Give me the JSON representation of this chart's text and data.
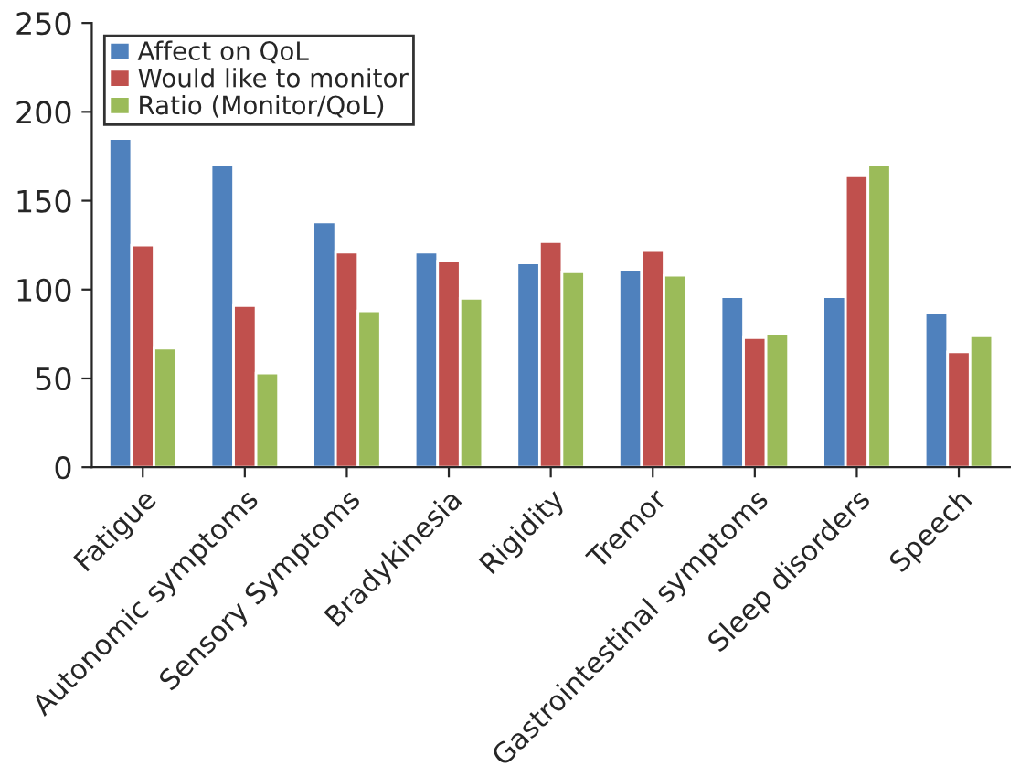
{
  "chart_data": {
    "type": "bar",
    "categories": [
      "Fatigue",
      "Autonomic symptoms",
      "Sensory Symptoms",
      "Bradykinesia",
      "Rigidity",
      "Tremor",
      "Gastrointestinal symptoms",
      "Sleep disorders",
      "Speech"
    ],
    "series": [
      {
        "name": "Affect on QoL",
        "color": "#4f81bd",
        "values": [
          185,
          170,
          138,
          121,
          115,
          111,
          96,
          96,
          87
        ]
      },
      {
        "name": "Would like to monitor",
        "color": "#c0504d",
        "values": [
          125,
          91,
          121,
          116,
          127,
          122,
          73,
          164,
          65
        ]
      },
      {
        "name": "Ratio (Monitor/QoL)",
        "color": "#9bbb59",
        "values": [
          67,
          53,
          88,
          95,
          110,
          108,
          75,
          170,
          74
        ]
      }
    ],
    "ylim": [
      0,
      250
    ],
    "yticks": [
      0,
      50,
      100,
      150,
      200,
      250
    ],
    "grid": false,
    "legend": "top left"
  }
}
